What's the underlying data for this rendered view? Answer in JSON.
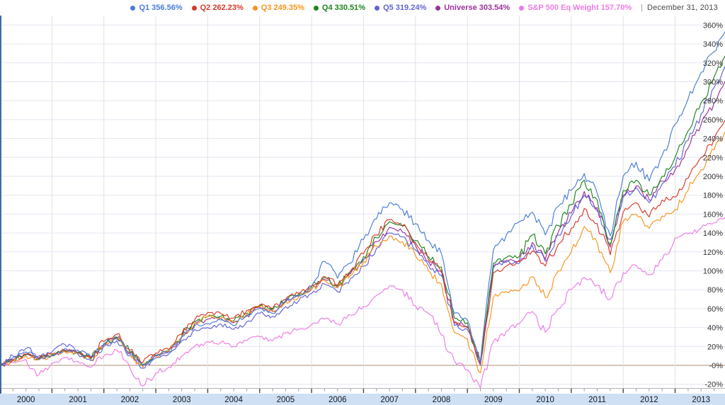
{
  "header": {
    "separator": "|",
    "as_of_label": "December 31, 2013"
  },
  "chart_data": {
    "type": "line",
    "title": "",
    "xlabel": "",
    "ylabel": "",
    "legend_position": "top-right",
    "grid": true,
    "x_axis": {
      "range": [
        2000,
        2014
      ],
      "year_labels": [
        "2000",
        "2001",
        "2002",
        "2003",
        "2004",
        "2005",
        "2006",
        "2007",
        "2008",
        "2009",
        "2010",
        "2011",
        "2012",
        "2013"
      ],
      "minor_ticks_per_year": 4
    },
    "y_axis": {
      "side": "right",
      "min": -20,
      "max": 360,
      "step": 20,
      "tick_values": [
        360,
        340,
        320,
        300,
        280,
        260,
        240,
        220,
        200,
        180,
        160,
        140,
        120,
        100,
        80,
        60,
        40,
        20,
        0,
        -20
      ],
      "tick_labels": [
        "360%",
        "340%",
        "320%",
        "300%",
        "280%",
        "260%",
        "240%",
        "220%",
        "200%",
        "180%",
        "160%",
        "140%",
        "120%",
        "100%",
        "80%",
        "60%",
        "40%",
        "20%",
        "-0%",
        "-20%"
      ],
      "zero_line_value": 0
    },
    "x_start": 2000,
    "x_step": 0.25,
    "series": [
      {
        "name": "Q1",
        "final": "356.56%",
        "color": "#4a7cd6",
        "values": [
          0,
          8,
          14,
          6,
          10,
          18,
          12,
          5,
          22,
          28,
          12,
          0,
          10,
          14,
          30,
          42,
          44,
          48,
          42,
          52,
          60,
          55,
          68,
          74,
          84,
          110,
          92,
          108,
          133,
          155,
          172,
          165,
          150,
          132,
          118,
          55,
          48,
          4,
          122,
          138,
          152,
          162,
          138,
          168,
          185,
          203,
          182,
          137,
          200,
          215,
          195,
          222,
          255,
          282,
          310,
          332,
          356.56
        ]
      },
      {
        "name": "Q2",
        "final": "262.23%",
        "color": "#d6392a",
        "values": [
          0,
          6,
          12,
          8,
          12,
          16,
          14,
          8,
          25,
          33,
          16,
          3,
          13,
          17,
          33,
          48,
          56,
          55,
          50,
          58,
          64,
          60,
          70,
          76,
          84,
          94,
          85,
          100,
          118,
          138,
          154,
          148,
          130,
          112,
          100,
          45,
          40,
          2,
          98,
          105,
          110,
          121,
          105,
          128,
          145,
          166,
          150,
          117,
          162,
          172,
          157,
          175,
          178,
          198,
          220,
          240,
          262.23
        ]
      },
      {
        "name": "Q3",
        "final": "249.35%",
        "color": "#f7941e",
        "values": [
          0,
          5,
          10,
          6,
          10,
          14,
          12,
          6,
          22,
          28,
          12,
          -2,
          10,
          15,
          30,
          45,
          52,
          50,
          46,
          54,
          62,
          58,
          67,
          72,
          80,
          90,
          82,
          95,
          110,
          126,
          137,
          131,
          116,
          100,
          86,
          35,
          28,
          -8,
          72,
          78,
          79,
          94,
          72,
          100,
          120,
          147,
          130,
          98,
          152,
          160,
          145,
          158,
          165,
          185,
          207,
          228,
          249.35
        ]
      },
      {
        "name": "Q4",
        "final": "330.51%",
        "color": "#1c851c",
        "values": [
          0,
          5,
          11,
          7,
          11,
          15,
          13,
          7,
          23,
          30,
          14,
          1,
          11,
          16,
          31,
          46,
          52,
          52,
          47,
          55,
          63,
          59,
          69,
          75,
          83,
          93,
          84,
          99,
          115,
          135,
          152,
          147,
          132,
          115,
          104,
          50,
          45,
          5,
          108,
          114,
          115,
          138,
          118,
          148,
          170,
          196,
          175,
          128,
          185,
          196,
          180,
          200,
          220,
          248,
          278,
          305,
          330.51
        ]
      },
      {
        "name": "Q5",
        "final": "319.24%",
        "color": "#6262d9",
        "values": [
          0,
          10,
          18,
          10,
          14,
          22,
          16,
          9,
          20,
          26,
          10,
          -3,
          8,
          12,
          26,
          38,
          40,
          44,
          38,
          46,
          55,
          52,
          62,
          68,
          76,
          86,
          78,
          92,
          105,
          124,
          140,
          136,
          122,
          106,
          95,
          42,
          38,
          0,
          103,
          109,
          108,
          127,
          110,
          138,
          158,
          180,
          163,
          133,
          178,
          188,
          172,
          192,
          210,
          238,
          266,
          294,
          319.24
        ]
      },
      {
        "name": "Universe",
        "final": "303.54%",
        "color": "#993399",
        "values": [
          0,
          6,
          12,
          7,
          11,
          16,
          13,
          7,
          22,
          29,
          13,
          0,
          10,
          15,
          30,
          44,
          49,
          50,
          45,
          53,
          61,
          57,
          67,
          73,
          81,
          91,
          82,
          97,
          112,
          131,
          146,
          141,
          127,
          110,
          99,
          46,
          41,
          2,
          105,
          111,
          111,
          130,
          112,
          141,
          161,
          184,
          167,
          125,
          180,
          190,
          175,
          195,
          207,
          230,
          255,
          278,
          303.54
        ]
      },
      {
        "name": "S&P 500 Eq Weight",
        "final": "157.70%",
        "color": "#ee7be5",
        "values": [
          0,
          3,
          6,
          -10,
          2,
          8,
          4,
          -2,
          10,
          16,
          -2,
          -22,
          -8,
          -2,
          10,
          20,
          25,
          24,
          20,
          26,
          30,
          26,
          34,
          38,
          43,
          49,
          44,
          53,
          62,
          74,
          84,
          80,
          63,
          55,
          32,
          5,
          -5,
          -24,
          25,
          36,
          44,
          57,
          35,
          60,
          80,
          93,
          85,
          70,
          98,
          106,
          96,
          112,
          135,
          139,
          145,
          151,
          157.7
        ]
      }
    ]
  },
  "colors": {
    "plot_background": "#ffffff",
    "h_gridline": "#e3e6f1",
    "v_gridline": "#dfe5df",
    "zero_line": "#c8b2a4",
    "left_border": "#3b6ca8",
    "axis_line": "#b3b3b3",
    "x_band": "#cfe0f4",
    "major_tick": "#444444",
    "minor_tick": "#999999",
    "y_label_text": "#333333",
    "x_label_text": "#14161f"
  }
}
